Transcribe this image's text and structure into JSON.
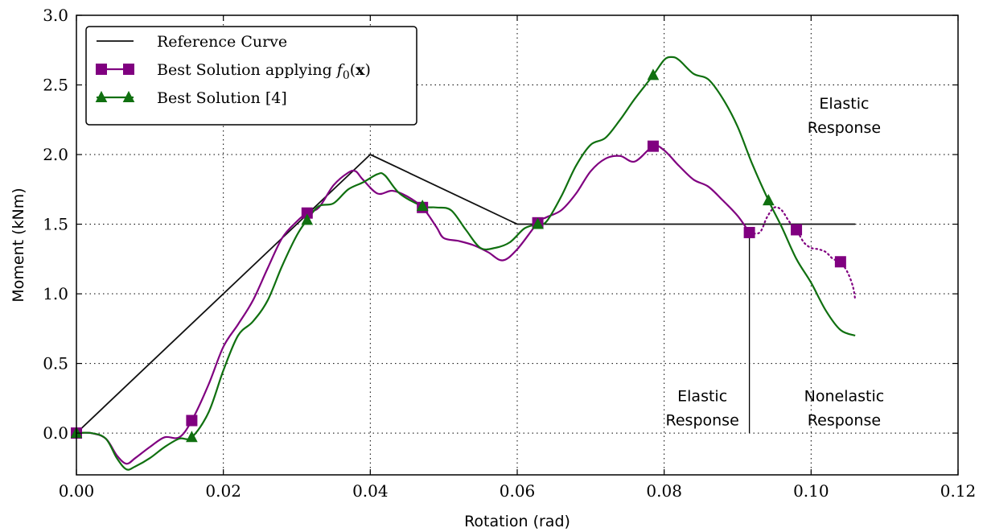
{
  "chart_data": {
    "type": "line",
    "title": "",
    "xlabel": "Rotation (rad)",
    "ylabel": "Moment (kNm)",
    "xlim": [
      0,
      0.12
    ],
    "ylim": [
      -0.3,
      3.0
    ],
    "xticks": [
      0.0,
      0.02,
      0.04,
      0.06,
      0.08,
      0.1,
      0.12
    ],
    "xtick_labels": [
      "0.00",
      "0.02",
      "0.04",
      "0.06",
      "0.08",
      "0.10",
      "0.12"
    ],
    "yticks": [
      0.0,
      0.5,
      1.0,
      1.5,
      2.0,
      2.5,
      3.0
    ],
    "ytick_labels": [
      "0.0",
      "0.5",
      "1.0",
      "1.5",
      "2.0",
      "2.5",
      "3.0"
    ],
    "grid": true,
    "legend_position": "top-left",
    "series": [
      {
        "name": "Reference Curve",
        "color": "#111111",
        "marker": "none",
        "points": [
          [
            0,
            0
          ],
          [
            0.04,
            2.0
          ],
          [
            0.06,
            1.5
          ],
          [
            0.106,
            1.5
          ]
        ]
      },
      {
        "name": "Best Solution applying",
        "name_math": "f",
        "name_sub": "0",
        "name_args": "(",
        "name_bold": "x",
        "name_close": ")",
        "color": "#800080",
        "marker": "square",
        "points": [
          [
            0,
            0
          ],
          [
            0.002,
            0.0
          ],
          [
            0.004,
            -0.04
          ],
          [
            0.0055,
            -0.16
          ],
          [
            0.0068,
            -0.22
          ],
          [
            0.008,
            -0.18
          ],
          [
            0.01,
            -0.1
          ],
          [
            0.012,
            -0.03
          ],
          [
            0.014,
            -0.03
          ],
          [
            0.0157,
            0.09
          ],
          [
            0.018,
            0.35
          ],
          [
            0.02,
            0.62
          ],
          [
            0.022,
            0.78
          ],
          [
            0.024,
            0.95
          ],
          [
            0.026,
            1.18
          ],
          [
            0.028,
            1.4
          ],
          [
            0.03,
            1.52
          ],
          [
            0.0314,
            1.58
          ],
          [
            0.033,
            1.62
          ],
          [
            0.035,
            1.78
          ],
          [
            0.037,
            1.87
          ],
          [
            0.038,
            1.88
          ],
          [
            0.039,
            1.82
          ],
          [
            0.041,
            1.72
          ],
          [
            0.043,
            1.74
          ],
          [
            0.045,
            1.7
          ],
          [
            0.0471,
            1.62
          ],
          [
            0.049,
            1.48
          ],
          [
            0.05,
            1.4
          ],
          [
            0.052,
            1.38
          ],
          [
            0.054,
            1.35
          ],
          [
            0.056,
            1.3
          ],
          [
            0.058,
            1.24
          ],
          [
            0.06,
            1.32
          ],
          [
            0.0628,
            1.51
          ],
          [
            0.064,
            1.55
          ],
          [
            0.066,
            1.6
          ],
          [
            0.068,
            1.72
          ],
          [
            0.07,
            1.88
          ],
          [
            0.072,
            1.97
          ],
          [
            0.074,
            1.99
          ],
          [
            0.076,
            1.95
          ],
          [
            0.0785,
            2.06
          ],
          [
            0.08,
            2.03
          ],
          [
            0.082,
            1.92
          ],
          [
            0.084,
            1.82
          ],
          [
            0.086,
            1.77
          ],
          [
            0.088,
            1.67
          ],
          [
            0.09,
            1.56
          ],
          [
            0.0916,
            1.44
          ]
        ],
        "dotted_points": [
          [
            0.0916,
            1.44
          ],
          [
            0.093,
            1.44
          ],
          [
            0.094,
            1.55
          ],
          [
            0.095,
            1.62
          ],
          [
            0.096,
            1.6
          ],
          [
            0.097,
            1.52
          ],
          [
            0.098,
            1.46
          ],
          [
            0.099,
            1.37
          ],
          [
            0.1,
            1.33
          ],
          [
            0.101,
            1.32
          ],
          [
            0.102,
            1.3
          ],
          [
            0.103,
            1.25
          ],
          [
            0.104,
            1.23
          ],
          [
            0.105,
            1.15
          ],
          [
            0.1057,
            1.05
          ],
          [
            0.106,
            0.96
          ]
        ],
        "marker_points": [
          [
            0,
            0
          ],
          [
            0.0157,
            0.09
          ],
          [
            0.0314,
            1.58
          ],
          [
            0.0471,
            1.62
          ],
          [
            0.0628,
            1.51
          ],
          [
            0.0785,
            2.06
          ],
          [
            0.0916,
            1.44
          ],
          [
            0.098,
            1.46
          ],
          [
            0.104,
            1.23
          ]
        ]
      },
      {
        "name": "Best Solution [4]",
        "color": "#107010",
        "marker": "triangle",
        "points": [
          [
            0,
            0
          ],
          [
            0.002,
            0.0
          ],
          [
            0.004,
            -0.04
          ],
          [
            0.0055,
            -0.18
          ],
          [
            0.0068,
            -0.26
          ],
          [
            0.008,
            -0.24
          ],
          [
            0.01,
            -0.18
          ],
          [
            0.012,
            -0.1
          ],
          [
            0.014,
            -0.04
          ],
          [
            0.0157,
            -0.03
          ],
          [
            0.018,
            0.15
          ],
          [
            0.02,
            0.45
          ],
          [
            0.022,
            0.7
          ],
          [
            0.024,
            0.8
          ],
          [
            0.026,
            0.95
          ],
          [
            0.028,
            1.2
          ],
          [
            0.03,
            1.42
          ],
          [
            0.0314,
            1.53
          ],
          [
            0.033,
            1.63
          ],
          [
            0.035,
            1.65
          ],
          [
            0.037,
            1.75
          ],
          [
            0.039,
            1.8
          ],
          [
            0.041,
            1.86
          ],
          [
            0.042,
            1.85
          ],
          [
            0.044,
            1.72
          ],
          [
            0.0471,
            1.63
          ],
          [
            0.049,
            1.62
          ],
          [
            0.051,
            1.6
          ],
          [
            0.053,
            1.46
          ],
          [
            0.055,
            1.33
          ],
          [
            0.057,
            1.33
          ],
          [
            0.059,
            1.37
          ],
          [
            0.061,
            1.47
          ],
          [
            0.0628,
            1.5
          ],
          [
            0.064,
            1.52
          ],
          [
            0.066,
            1.7
          ],
          [
            0.068,
            1.92
          ],
          [
            0.07,
            2.07
          ],
          [
            0.072,
            2.12
          ],
          [
            0.074,
            2.25
          ],
          [
            0.076,
            2.4
          ],
          [
            0.0785,
            2.57
          ],
          [
            0.08,
            2.68
          ],
          [
            0.081,
            2.7
          ],
          [
            0.082,
            2.68
          ],
          [
            0.084,
            2.58
          ],
          [
            0.086,
            2.54
          ],
          [
            0.088,
            2.4
          ],
          [
            0.09,
            2.2
          ],
          [
            0.092,
            1.93
          ],
          [
            0.0942,
            1.67
          ],
          [
            0.096,
            1.48
          ],
          [
            0.098,
            1.25
          ],
          [
            0.1,
            1.08
          ],
          [
            0.102,
            0.88
          ],
          [
            0.104,
            0.74
          ],
          [
            0.106,
            0.7
          ]
        ],
        "marker_points": [
          [
            0,
            0
          ],
          [
            0.0157,
            -0.03
          ],
          [
            0.0314,
            1.53
          ],
          [
            0.0471,
            1.63
          ],
          [
            0.0628,
            1.5
          ],
          [
            0.0785,
            2.57
          ],
          [
            0.0942,
            1.67
          ]
        ]
      }
    ],
    "vertical_line": {
      "x": 0.0916,
      "y_from": 0.0,
      "y_to": 1.44
    },
    "annotations": [
      {
        "id": "elastic-top",
        "lines": [
          "Elastic",
          "Response"
        ],
        "x": 0.1045,
        "y": 2.33
      },
      {
        "id": "elastic-bottom",
        "lines": [
          "Elastic",
          "Response"
        ],
        "x": 0.0852,
        "y": 0.23
      },
      {
        "id": "nonelastic",
        "lines": [
          "Nonelastic",
          "Response"
        ],
        "x": 0.1045,
        "y": 0.23
      }
    ]
  }
}
